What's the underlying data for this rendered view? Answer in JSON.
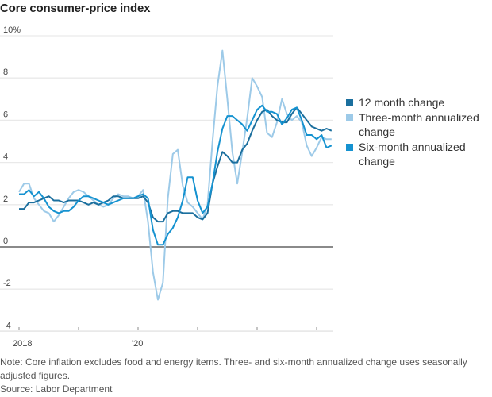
{
  "chart_data": {
    "type": "line",
    "title": "Core consumer-price index",
    "x_start": "2018-01",
    "x_end": "2023-04",
    "x_frequency": "monthly",
    "x_tick_labels": [
      "2018",
      "",
      "'20",
      "",
      "",
      ""
    ],
    "x_tick_years": [
      2018,
      2019,
      2020,
      2021,
      2022,
      2023
    ],
    "y_ticks": [
      -4,
      -2,
      0,
      2,
      4,
      6,
      8,
      10
    ],
    "y_tick_labels": [
      "-4",
      "-2",
      "0",
      "2",
      "4",
      "6",
      "8",
      "10%"
    ],
    "ylim": [
      -4,
      10
    ],
    "unit": "%",
    "grid": true,
    "legend_position": "right",
    "series": [
      {
        "name": "12 month change",
        "color": "#1b6f9e",
        "values": [
          1.8,
          1.8,
          2.1,
          2.1,
          2.2,
          2.3,
          2.4,
          2.2,
          2.2,
          2.1,
          2.2,
          2.2,
          2.2,
          2.1,
          2.0,
          2.1,
          2.0,
          2.1,
          2.2,
          2.4,
          2.4,
          2.3,
          2.3,
          2.3,
          2.3,
          2.4,
          2.1,
          1.4,
          1.2,
          1.2,
          1.6,
          1.7,
          1.7,
          1.6,
          1.6,
          1.6,
          1.4,
          1.3,
          1.6,
          3.0,
          3.8,
          4.5,
          4.3,
          4.0,
          4.0,
          4.6,
          4.9,
          5.5,
          6.0,
          6.4,
          6.5,
          6.2,
          6.0,
          5.9,
          5.9,
          6.3,
          6.6,
          6.3,
          6.0,
          5.7,
          5.6,
          5.5,
          5.6,
          5.5
        ]
      },
      {
        "name": "Three-month annualized change",
        "color": "#9dcae8",
        "values": [
          2.6,
          3.0,
          3.0,
          2.3,
          2.0,
          1.7,
          1.6,
          1.2,
          1.5,
          1.9,
          2.3,
          2.6,
          2.7,
          2.6,
          2.4,
          2.2,
          2.0,
          1.9,
          2.0,
          2.3,
          2.5,
          2.4,
          2.4,
          2.3,
          2.4,
          2.7,
          1.2,
          -1.2,
          -2.5,
          -1.7,
          2.3,
          4.4,
          4.6,
          2.9,
          2.1,
          1.9,
          1.6,
          1.3,
          2.0,
          5.0,
          7.6,
          9.3,
          7.0,
          4.5,
          3.0,
          4.5,
          6.1,
          8.0,
          7.6,
          7.1,
          5.4,
          5.2,
          5.9,
          7.0,
          6.3,
          6.0,
          6.2,
          5.9,
          4.8,
          4.3,
          4.7,
          5.2,
          5.1,
          5.1
        ]
      },
      {
        "name": "Six-month annualized change",
        "color": "#1592d0",
        "values": [
          2.5,
          2.5,
          2.7,
          2.4,
          2.6,
          2.3,
          1.9,
          1.7,
          1.6,
          1.7,
          1.7,
          1.9,
          2.2,
          2.4,
          2.4,
          2.3,
          2.2,
          2.1,
          2.0,
          2.1,
          2.2,
          2.3,
          2.3,
          2.3,
          2.4,
          2.5,
          2.3,
          0.8,
          0.1,
          0.1,
          0.6,
          0.9,
          1.4,
          2.2,
          3.3,
          3.3,
          2.2,
          1.6,
          1.9,
          3.0,
          4.5,
          5.6,
          6.2,
          6.2,
          6.0,
          5.8,
          5.5,
          6.0,
          6.5,
          6.7,
          6.4,
          6.4,
          6.3,
          5.8,
          6.1,
          6.5,
          6.6,
          6.0,
          5.3,
          5.3,
          5.1,
          5.3,
          4.7,
          4.8
        ]
      }
    ],
    "legend": [
      {
        "label": "12 month change",
        "color": "#1b6f9e"
      },
      {
        "label": "Three-month annualized change",
        "color": "#9dcae8"
      },
      {
        "label": "Six-month annualized change",
        "color": "#1592d0"
      }
    ]
  },
  "notes": {
    "note": "Note: Core inflation excludes food and energy items. Three- and six-month annualized change uses seasonally adjusted figures.",
    "source": "Source: Labor Department"
  }
}
